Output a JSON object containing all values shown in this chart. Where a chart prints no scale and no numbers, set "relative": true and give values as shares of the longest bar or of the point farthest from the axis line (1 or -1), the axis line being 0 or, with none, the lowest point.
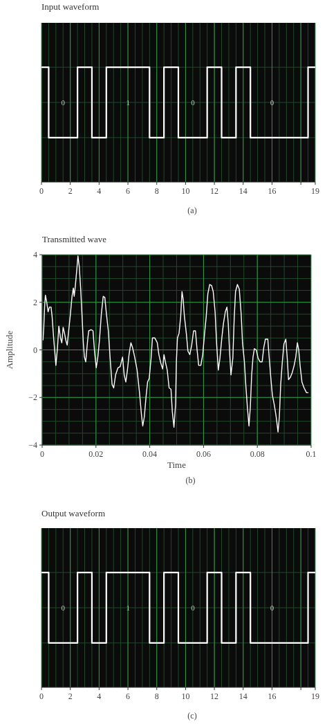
{
  "chart_data": [
    {
      "type": "step",
      "title": "Input waveform",
      "relative": true,
      "grid": true,
      "xlim": [
        0,
        19
      ],
      "xticks": [
        0,
        2,
        4,
        6,
        8,
        10,
        12,
        14,
        16,
        {
          "value": 18,
          "label": null
        },
        19
      ],
      "series": [
        {
          "color": "#ffffff",
          "x": [
            0,
            0.5,
            2.5,
            3.5,
            4.5,
            7.5,
            8.5,
            9.5,
            11.5,
            12.5,
            13.5,
            14.5,
            18.5,
            19
          ],
          "values": [
            1,
            0,
            1,
            0,
            1,
            0,
            1,
            0,
            1,
            0,
            1,
            0,
            1,
            1
          ]
        }
      ],
      "annotations": [
        "0",
        "1",
        "0",
        "0",
        "(a)"
      ]
    },
    {
      "type": "line",
      "title": "Transmitted wave",
      "xlabel": "Time",
      "ylabel": "Amplitude",
      "grid": true,
      "xlim": [
        0,
        0.1
      ],
      "xticks": [
        0,
        0.02,
        0.04,
        0.06,
        0.08,
        0.1
      ],
      "ylim": [
        -4,
        4
      ],
      "yticks": [
        {
          "value": -4,
          "label": "−4"
        },
        {
          "value": -2,
          "label": "−2"
        },
        0,
        2,
        4
      ],
      "series": [
        {
          "color": "#ffffff",
          "x": [
            0.0003,
            0.0006,
            0.0009,
            0.0012,
            0.0017,
            0.0022,
            0.0027,
            0.0033,
            0.0037,
            0.0042,
            0.0047,
            0.0051,
            0.0057,
            0.0062,
            0.0068,
            0.0073,
            0.0078,
            0.0083,
            0.0088,
            0.0093,
            0.0099,
            0.0105,
            0.0111,
            0.0116,
            0.0119,
            0.0123,
            0.0129,
            0.0133,
            0.0138,
            0.0143,
            0.0148,
            0.0153,
            0.0157,
            0.0162,
            0.0169,
            0.0173,
            0.0182,
            0.0189,
            0.0195,
            0.0201,
            0.0207,
            0.0213,
            0.022,
            0.0227,
            0.0233,
            0.0239,
            0.0246,
            0.0253,
            0.026,
            0.0266,
            0.0273,
            0.0282,
            0.029,
            0.0299,
            0.0305,
            0.0311,
            0.0317,
            0.0323,
            0.033,
            0.0336,
            0.0344,
            0.0353,
            0.0362,
            0.0369,
            0.0374,
            0.038,
            0.0386,
            0.0392,
            0.0398,
            0.0405,
            0.041,
            0.0419,
            0.0428,
            0.0434,
            0.0441,
            0.0448,
            0.0453,
            0.0458,
            0.0465,
            0.0472,
            0.0479,
            0.0484,
            0.049,
            0.0496,
            0.0499,
            0.0503,
            0.0509,
            0.0515,
            0.052,
            0.0524,
            0.0529,
            0.0536,
            0.0542,
            0.0549,
            0.0556,
            0.0563,
            0.057,
            0.0576,
            0.0582,
            0.059,
            0.0597,
            0.0604,
            0.061,
            0.0616,
            0.0623,
            0.063,
            0.0636,
            0.0643,
            0.0649,
            0.0655,
            0.0661,
            0.0668,
            0.0674,
            0.0681,
            0.0687,
            0.0692,
            0.0697,
            0.0702,
            0.0709,
            0.0714,
            0.0719,
            0.0726,
            0.0733,
            0.074,
            0.0745,
            0.0752,
            0.0757,
            0.0763,
            0.0769,
            0.0774,
            0.0779,
            0.0784,
            0.0789,
            0.0796,
            0.0803,
            0.081,
            0.0818,
            0.0824,
            0.083,
            0.0839,
            0.0844,
            0.085,
            0.0856,
            0.0863,
            0.087,
            0.0877,
            0.0882,
            0.0887,
            0.0893,
            0.0899,
            0.0906,
            0.0911,
            0.0916,
            0.0923,
            0.093,
            0.0937,
            0.0943,
            0.0949,
            0.0954,
            0.0959,
            0.0966,
            0.0974,
            0.0983,
            0.099
          ],
          "values": [
            0.4,
            0.95,
            1.8,
            2.3,
            2.0,
            1.6,
            1.8,
            1.8,
            1.4,
            0.6,
            -0.1,
            -0.65,
            0.1,
            1.0,
            0.5,
            0.3,
            0.95,
            0.7,
            0.4,
            0.2,
            0.85,
            1.5,
            2.25,
            2.6,
            2.25,
            2.65,
            3.4,
            3.95,
            3.5,
            2.6,
            1.5,
            0.3,
            -0.3,
            -0.5,
            0.4,
            0.8,
            0.85,
            0.8,
            -0.1,
            -0.75,
            -0.3,
            0.4,
            1.5,
            2.25,
            2.2,
            1.5,
            0.8,
            -0.4,
            -1.45,
            -1.6,
            -1.05,
            -0.75,
            -0.7,
            -0.3,
            -1.05,
            -1.35,
            -0.85,
            -0.2,
            0.3,
            0.1,
            -0.3,
            -0.85,
            -1.8,
            -2.7,
            -3.2,
            -2.8,
            -2.0,
            -1.35,
            -1.2,
            -0.35,
            0.5,
            0.5,
            0.3,
            -0.2,
            -0.55,
            -0.8,
            -0.2,
            -0.5,
            -0.85,
            -1.6,
            -1.65,
            -2.6,
            -3.25,
            -2.3,
            -0.5,
            0.5,
            0.7,
            1.4,
            2.45,
            2.15,
            1.4,
            0.7,
            -0.05,
            -0.2,
            0.2,
            0.8,
            0.8,
            0.0,
            -0.65,
            -0.65,
            -0.2,
            0.7,
            1.4,
            2.35,
            2.75,
            2.7,
            2.45,
            1.6,
            0.2,
            -0.85,
            -0.35,
            0.5,
            1.1,
            1.6,
            1.8,
            1.1,
            -0.1,
            -1.05,
            -0.35,
            1.3,
            2.45,
            2.75,
            2.55,
            1.5,
            0.3,
            -0.5,
            -1.45,
            -2.4,
            -3.2,
            -2.4,
            -1.05,
            -0.3,
            0.05,
            0.0,
            -0.35,
            -0.5,
            -0.5,
            0.1,
            0.45,
            0.45,
            -0.3,
            -1.15,
            -1.9,
            -2.3,
            -2.8,
            -3.45,
            -2.8,
            -1.45,
            -0.5,
            0.25,
            0.45,
            -0.3,
            -1.25,
            -1.15,
            -0.95,
            -0.65,
            -0.3,
            0.3,
            0.0,
            -0.65,
            -1.35,
            -1.6,
            -1.8,
            -1.8
          ]
        }
      ],
      "annotations": [
        "(b)"
      ]
    },
    {
      "type": "step",
      "title": "Output waveform",
      "relative": true,
      "grid": true,
      "xlim": [
        0,
        19
      ],
      "xticks": [
        0,
        2,
        4,
        6,
        8,
        10,
        12,
        14,
        16,
        {
          "value": 18,
          "label": null
        },
        19
      ],
      "series": [
        {
          "color": "#ffffff",
          "x": [
            0,
            0.5,
            2.5,
            3.5,
            4.5,
            7.5,
            8.5,
            9.5,
            11.5,
            12.5,
            13.5,
            14.5,
            18.5,
            19
          ],
          "values": [
            1,
            0,
            1,
            0,
            1,
            0,
            1,
            0,
            1,
            0,
            1,
            0,
            1,
            1
          ]
        }
      ],
      "annotations": [
        "0",
        "1",
        "0",
        "0",
        "(c)"
      ]
    }
  ]
}
